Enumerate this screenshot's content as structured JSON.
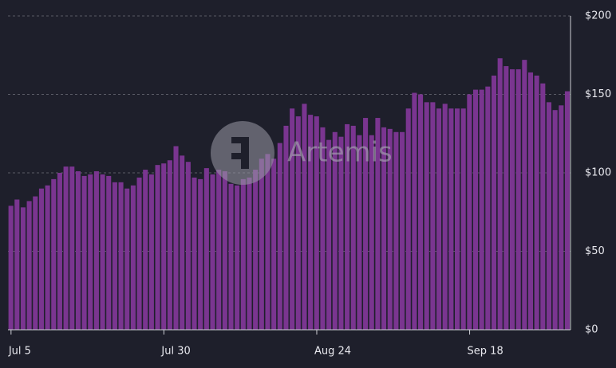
{
  "chart_data": {
    "type": "bar",
    "watermark": "Artemis",
    "categories": [
      "Jul 5",
      null,
      null,
      null,
      null,
      null,
      null,
      null,
      null,
      null,
      null,
      null,
      null,
      null,
      null,
      null,
      null,
      null,
      null,
      null,
      null,
      null,
      null,
      null,
      null,
      "Jul 30",
      null,
      null,
      null,
      null,
      null,
      null,
      null,
      null,
      null,
      null,
      null,
      null,
      null,
      null,
      null,
      null,
      null,
      null,
      null,
      null,
      null,
      null,
      null,
      null,
      "Aug 24",
      null,
      null,
      null,
      null,
      null,
      null,
      null,
      null,
      null,
      null,
      null,
      null,
      null,
      null,
      null,
      null,
      null,
      null,
      null,
      null,
      null,
      null,
      null,
      null,
      "Sep 18",
      null,
      null,
      null,
      null,
      null,
      null,
      null,
      null,
      null,
      null,
      null,
      null,
      null,
      null,
      null,
      null
    ],
    "values": [
      79,
      83,
      78,
      82,
      85,
      90,
      92,
      96,
      100,
      104,
      104,
      101,
      98,
      99,
      101,
      99,
      98,
      94,
      94,
      90,
      92,
      97,
      102,
      99,
      105,
      106,
      108,
      117,
      111,
      107,
      97,
      96,
      103,
      99,
      102,
      101,
      93,
      92,
      96,
      97,
      102,
      109,
      112,
      109,
      119,
      130,
      141,
      136,
      144,
      137,
      136,
      129,
      121,
      126,
      123,
      131,
      130,
      124,
      135,
      124,
      135,
      129,
      128,
      126,
      126,
      141,
      151,
      150,
      145,
      145,
      141,
      144,
      141,
      141,
      141,
      150,
      153,
      153,
      155,
      162,
      173,
      168,
      166,
      166,
      172,
      164,
      162,
      157,
      145,
      140,
      143,
      152
    ],
    "color": "#7a3590",
    "ylim": [
      0,
      200
    ],
    "yticks": [
      {
        "value": 0,
        "label": "$0"
      },
      {
        "value": 50,
        "label": "$50"
      },
      {
        "value": 100,
        "label": "$100"
      },
      {
        "value": 150,
        "label": "$150"
      },
      {
        "value": 200,
        "label": "$200"
      }
    ],
    "grid": true
  }
}
